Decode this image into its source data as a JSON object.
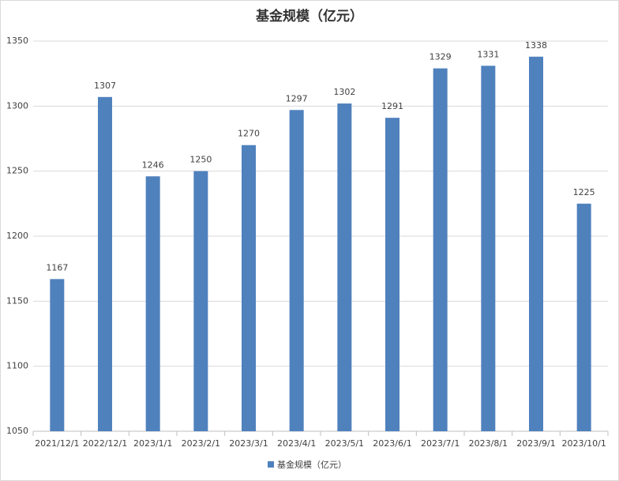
{
  "chart_data": {
    "type": "bar",
    "title": "基金规模（亿元）",
    "categories": [
      "2021/12/1",
      "2022/12/1",
      "2023/1/1",
      "2023/2/1",
      "2023/3/1",
      "2023/4/1",
      "2023/5/1",
      "2023/6/1",
      "2023/7/1",
      "2023/8/1",
      "2023/9/1",
      "2023/10/1"
    ],
    "series": [
      {
        "name": "基金规模（亿元）",
        "color": "#4f81bd",
        "values": [
          1167,
          1307,
          1246,
          1250,
          1270,
          1297,
          1302,
          1291,
          1329,
          1331,
          1338,
          1225
        ]
      }
    ],
    "ylim": [
      1050,
      1350
    ],
    "yticks": [
      1050,
      1100,
      1150,
      1200,
      1250,
      1300,
      1350
    ],
    "grid": true,
    "legend": "bottom",
    "data_labels": true
  }
}
